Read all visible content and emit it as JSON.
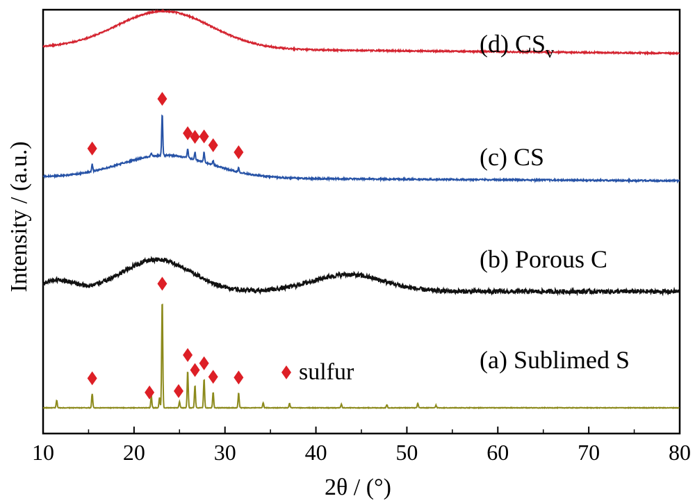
{
  "chart_data": {
    "type": "line",
    "xlabel": "2θ / (°)",
    "ylabel": "Intensity / (a.u.)",
    "xlim": [
      10,
      80
    ],
    "xticks": [
      10,
      20,
      30,
      40,
      50,
      60,
      70,
      80
    ],
    "y_ticks_shown": false,
    "grid": false,
    "marker_color": "#dd1f26",
    "legend": {
      "marker": "diamond",
      "label": "sulfur",
      "placement": "right-center"
    },
    "series": [
      {
        "name": "(a) Sublimed S",
        "color": "#8c8a1c",
        "baseline": 0.0,
        "peaks": [
          {
            "x": 11.5,
            "h": 0.02
          },
          {
            "x": 15.4,
            "h": 0.038
          },
          {
            "x": 21.9,
            "h": 0.032
          },
          {
            "x": 22.8,
            "h": 0.028
          },
          {
            "x": 23.1,
            "h": 0.29
          },
          {
            "x": 25.0,
            "h": 0.016
          },
          {
            "x": 25.9,
            "h": 0.1
          },
          {
            "x": 26.7,
            "h": 0.06
          },
          {
            "x": 27.7,
            "h": 0.078
          },
          {
            "x": 28.7,
            "h": 0.042
          },
          {
            "x": 31.5,
            "h": 0.04
          },
          {
            "x": 34.2,
            "h": 0.014
          },
          {
            "x": 37.1,
            "h": 0.012
          },
          {
            "x": 42.8,
            "h": 0.01
          },
          {
            "x": 47.8,
            "h": 0.008
          },
          {
            "x": 51.2,
            "h": 0.012
          },
          {
            "x": 53.2,
            "h": 0.007
          }
        ],
        "markers_at_x": [
          15.4,
          21.7,
          23.1,
          24.9,
          25.9,
          26.7,
          27.7,
          28.7,
          31.5
        ]
      },
      {
        "name": "(b) Porous C",
        "color": "#111111",
        "baseline": 0.31,
        "humps": [
          {
            "x": 11.5,
            "h": 0.03,
            "w": 1.8
          },
          {
            "x": 22.5,
            "h": 0.085,
            "w": 3.8
          },
          {
            "x": 43.5,
            "h": 0.045,
            "w": 4.0
          }
        ],
        "markers_at_x": []
      },
      {
        "name": "(c) CS",
        "color": "#2652a6",
        "baseline": 0.615,
        "humps": [
          {
            "x": 23.5,
            "h": 0.06,
            "w": 5.0
          }
        ],
        "peaks": [
          {
            "x": 15.4,
            "h": 0.02
          },
          {
            "x": 21.9,
            "h": 0.01
          },
          {
            "x": 23.1,
            "h": 0.11
          },
          {
            "x": 25.9,
            "h": 0.025
          },
          {
            "x": 26.7,
            "h": 0.02
          },
          {
            "x": 27.7,
            "h": 0.028
          },
          {
            "x": 28.7,
            "h": 0.012
          },
          {
            "x": 31.5,
            "h": 0.012
          }
        ],
        "markers_at_x": [
          15.4,
          23.1,
          25.9,
          26.7,
          27.7,
          28.7,
          31.5
        ]
      },
      {
        "name": "(d) CSv",
        "color": "#d42430",
        "baseline": 0.96,
        "humps": [
          {
            "x": 23.3,
            "h": 0.1,
            "w": 5.2
          }
        ],
        "markers_at_x": []
      }
    ],
    "series_labels": [
      {
        "main": "(a) Sublimed S",
        "sub": ""
      },
      {
        "main": "(b) Porous C",
        "sub": ""
      },
      {
        "main": "(c) CS",
        "sub": ""
      },
      {
        "main": "(d) CS",
        "sub": "v"
      }
    ]
  }
}
